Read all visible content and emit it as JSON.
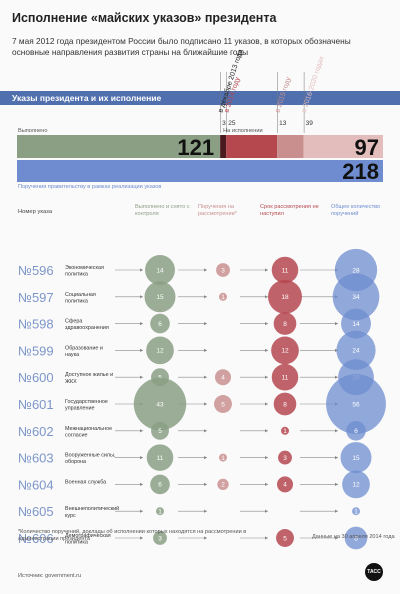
{
  "title": "Исполнение «майских указов» президента",
  "subtitle": "7 мая 2012 года президентом России было подписано 11 указов, в которых обозначены основные направления развития страны на ближайшие годы",
  "section_title": "Указы президента и их исполнение",
  "footnote": "*Количество поручений, доклады об исполнении которых находятся на рассмотрении в администрации президента",
  "data_date": "Данные на 30 апреля 2014 года",
  "source": "Источник: government.ru",
  "logo_text": "ТАСС",
  "colors": {
    "done": "#8a9f84",
    "review": "#c98f8f",
    "pending": "#b5474f",
    "total": "#6e8ccf",
    "section": "#4f6fae"
  },
  "chart_data": [
    {
      "type": "bar",
      "title": "",
      "summary": {
        "done_label": "Выполнено",
        "done": 121,
        "review_label": "На исполнении",
        "review": 97,
        "total": 218,
        "total_label": "Поручения правительству в рамках реализации указов",
        "deadlines": [
          {
            "label": "в декабре 2013 года",
            "value": 3
          },
          {
            "label": "в 2014 году",
            "value": 25
          },
          {
            "label": "в 2015 году",
            "value": 13
          },
          {
            "label": "в 2016-2020 годах",
            "value": 39
          }
        ]
      }
    },
    {
      "type": "scatter",
      "title": "",
      "row_header": "Номер указа",
      "columns": [
        "Выполнено и снято с контроля",
        "Поручения на рассмотрении*",
        "Срок рассмотрения не наступил",
        "Общее количество поручений"
      ],
      "rows": [
        {
          "number": "№596",
          "name": "Экономическая политика",
          "done": 14,
          "review": 3,
          "pending": 11,
          "total": 28
        },
        {
          "number": "№597",
          "name": "Социальная политика",
          "done": 15,
          "review": 1,
          "pending": 18,
          "total": 34
        },
        {
          "number": "№598",
          "name": "Сфера здравоохранения",
          "done": 6,
          "review": null,
          "pending": 8,
          "total": 14
        },
        {
          "number": "№599",
          "name": "Образование и наука",
          "done": 12,
          "review": null,
          "pending": 12,
          "total": 24
        },
        {
          "number": "№600",
          "name": "Доступное жилье и ЖКХ",
          "done": 5,
          "review": 4,
          "pending": 11,
          "total": 20
        },
        {
          "number": "№601",
          "name": "Государственное управление",
          "done": 43,
          "review": 5,
          "pending": 8,
          "total": 56
        },
        {
          "number": "№602",
          "name": "Межнациональное согласие",
          "done": 5,
          "review": null,
          "pending": 1,
          "total": 6
        },
        {
          "number": "№603",
          "name": "Вооруженные силы, оборона",
          "done": 11,
          "review": 1,
          "pending": 3,
          "total": 15
        },
        {
          "number": "№604",
          "name": "Военная служба",
          "done": 6,
          "review": 2,
          "pending": 4,
          "total": 12
        },
        {
          "number": "№605",
          "name": "Внешнеполитический курс",
          "done": 1,
          "review": null,
          "pending": null,
          "total": 1
        },
        {
          "number": "№606",
          "name": "Демографическая политика",
          "done": 3,
          "review": null,
          "pending": 5,
          "total": 8
        }
      ]
    }
  ]
}
